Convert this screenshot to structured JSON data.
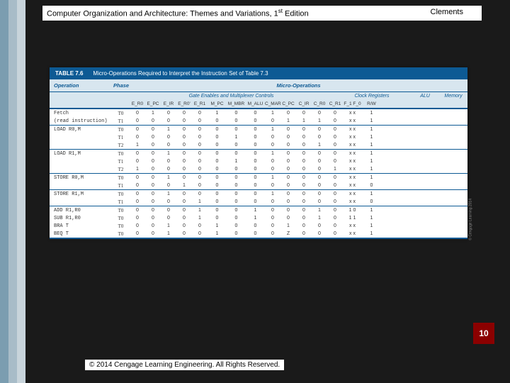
{
  "header": {
    "title_a": "Computer Organization and Architecture: Themes and Variations, 1",
    "title_sup": "st",
    "title_b": " Edition",
    "author": "Clements"
  },
  "page_number": "10",
  "copyright": "© 2014 Cengage Learning Engineering. All Rights Reserved.",
  "side_credit": "© Cengage Learning 2014",
  "table": {
    "number": "TABLE 7.6",
    "caption": "Micro-Operations Required to Interpret the Instruction Set of Table 7.3",
    "h1": {
      "operation": "Operation",
      "phase": "Phase",
      "micro": "Micro-Operations"
    },
    "h2": {
      "gate": "Gate Enables and Multiplexer Controls",
      "clock": "Clock Registers",
      "alu": "ALU",
      "memory": "Memory"
    },
    "cols": [
      "E_R0",
      "E_PC",
      "E_IR",
      "E_R0'",
      "E_R1",
      "M_PC",
      "M_MBR",
      "M_ALU",
      "C_MAR",
      "C_PC",
      "C_IR",
      "C_R0",
      "C_R1",
      "F_1 F_0",
      "R/W"
    ],
    "groups": [
      {
        "op": [
          "Fetch",
          "(read instruction)"
        ],
        "rows": [
          [
            "T0",
            "0",
            "1",
            "0",
            "0",
            "0",
            "1",
            "0",
            "0",
            "1",
            "0",
            "0",
            "0",
            "0",
            "x x",
            "1"
          ],
          [
            "T1",
            "0",
            "0",
            "0",
            "0",
            "0",
            "0",
            "0",
            "0",
            "0",
            "1",
            "1",
            "1",
            "0",
            "x x",
            "1"
          ]
        ]
      },
      {
        "op": [
          "LOAD  R0,M"
        ],
        "rows": [
          [
            "T0",
            "0",
            "0",
            "1",
            "0",
            "0",
            "0",
            "0",
            "0",
            "1",
            "0",
            "0",
            "0",
            "0",
            "x x",
            "1"
          ],
          [
            "T1",
            "0",
            "0",
            "0",
            "0",
            "0",
            "0",
            "1",
            "0",
            "0",
            "0",
            "0",
            "0",
            "0",
            "x x",
            "1"
          ],
          [
            "T2",
            "1",
            "0",
            "0",
            "0",
            "0",
            "0",
            "0",
            "0",
            "0",
            "0",
            "0",
            "1",
            "0",
            "x x",
            "1"
          ]
        ]
      },
      {
        "op": [
          "LOAD  R1,M"
        ],
        "rows": [
          [
            "T0",
            "0",
            "0",
            "1",
            "0",
            "0",
            "0",
            "0",
            "0",
            "1",
            "0",
            "0",
            "0",
            "0",
            "x x",
            "1"
          ],
          [
            "T1",
            "0",
            "0",
            "0",
            "0",
            "0",
            "0",
            "1",
            "0",
            "0",
            "0",
            "0",
            "0",
            "0",
            "x x",
            "1"
          ],
          [
            "T2",
            "1",
            "0",
            "0",
            "0",
            "0",
            "0",
            "0",
            "0",
            "0",
            "0",
            "0",
            "0",
            "1",
            "x x",
            "1"
          ]
        ]
      },
      {
        "op": [
          "STORE R0,M"
        ],
        "rows": [
          [
            "T0",
            "0",
            "0",
            "1",
            "0",
            "0",
            "0",
            "0",
            "0",
            "1",
            "0",
            "0",
            "0",
            "0",
            "x x",
            "1"
          ],
          [
            "T1",
            "0",
            "0",
            "0",
            "1",
            "0",
            "0",
            "0",
            "0",
            "0",
            "0",
            "0",
            "0",
            "0",
            "x x",
            "0"
          ]
        ]
      },
      {
        "op": [
          "STORE R1,M"
        ],
        "rows": [
          [
            "T0",
            "0",
            "0",
            "1",
            "0",
            "0",
            "0",
            "0",
            "0",
            "1",
            "0",
            "0",
            "0",
            "0",
            "x x",
            "1"
          ],
          [
            "T1",
            "0",
            "0",
            "0",
            "0",
            "1",
            "0",
            "0",
            "0",
            "0",
            "0",
            "0",
            "0",
            "0",
            "x x",
            "0"
          ]
        ]
      },
      {
        "op": [
          "ADD   R1,R0",
          "SUB   R1,R0",
          "BRA   T",
          "BEQ   T"
        ],
        "rows": [
          [
            "T0",
            "0",
            "0",
            "0",
            "0",
            "1",
            "0",
            "0",
            "1",
            "0",
            "0",
            "0",
            "1",
            "0",
            "1 0",
            "1"
          ],
          [
            "T0",
            "0",
            "0",
            "0",
            "0",
            "1",
            "0",
            "0",
            "1",
            "0",
            "0",
            "0",
            "1",
            "0",
            "1 1",
            "1"
          ],
          [
            "T0",
            "0",
            "0",
            "1",
            "0",
            "0",
            "1",
            "0",
            "0",
            "0",
            "1",
            "0",
            "0",
            "0",
            "x x",
            "1"
          ],
          [
            "T0",
            "0",
            "0",
            "1",
            "0",
            "0",
            "1",
            "0",
            "0",
            "0",
            "Z",
            "0",
            "0",
            "0",
            "x x",
            "1"
          ]
        ]
      }
    ]
  }
}
